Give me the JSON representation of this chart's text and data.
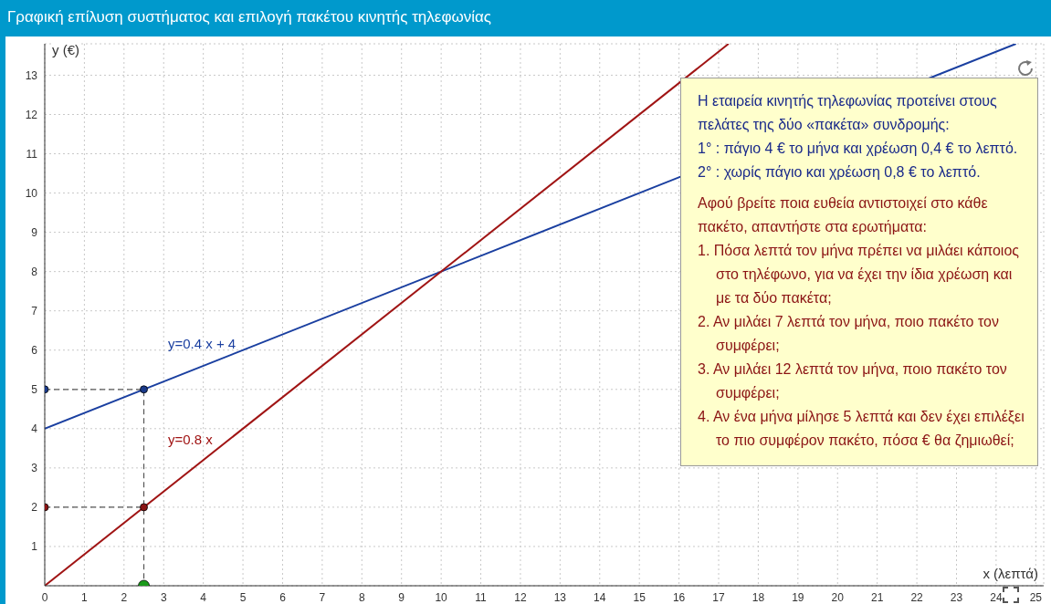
{
  "chart_data": {
    "type": "line",
    "title": "Γραφική επίλυση συστήματος και επιλογή πακέτου κινητής τηλεφωνίας",
    "xlabel": "x (λεπτά)",
    "ylabel": "y (€)",
    "xlim": [
      0,
      25.2
    ],
    "ylim": [
      0,
      13.8
    ],
    "xticks": [
      0,
      1,
      2,
      3,
      4,
      5,
      6,
      7,
      8,
      9,
      10,
      11,
      12,
      13,
      14,
      15,
      16,
      17,
      18,
      19,
      20,
      21,
      22,
      23,
      24,
      25
    ],
    "yticks": [
      1,
      2,
      3,
      4,
      5,
      6,
      7,
      8,
      9,
      10,
      11,
      12,
      13
    ],
    "grid": true,
    "line_style": "solid",
    "series": [
      {
        "color": "#1a3fa0",
        "x": [
          0,
          24.5
        ],
        "values": [
          4,
          13.8
        ],
        "marker": "none"
      },
      {
        "color": "#a01414",
        "x": [
          0,
          17.25
        ],
        "values": [
          0,
          13.8
        ],
        "marker": "none"
      },
      {
        "type": "line",
        "color": "#555555",
        "x": [
          0,
          2.5,
          2.5
        ],
        "values": [
          5,
          5,
          0
        ],
        "line_style": "dashed",
        "marker": "none"
      },
      {
        "type": "line",
        "color": "#555555",
        "x": [
          0,
          2.5
        ],
        "values": [
          2,
          2
        ],
        "line_style": "dashed",
        "marker": "none"
      },
      {
        "type": "scatter",
        "color": "#1a3a8a",
        "x": [
          0,
          2.5
        ],
        "values": [
          5,
          5
        ],
        "marker": "circle"
      },
      {
        "type": "scatter",
        "color": "#8b1414",
        "x": [
          0,
          2.5
        ],
        "values": [
          2,
          2
        ],
        "marker": "circle"
      },
      {
        "type": "scatter",
        "color": "#1a9a1a",
        "x": [
          2.5
        ],
        "values": [
          0
        ],
        "marker": "circle"
      }
    ],
    "annotations": [
      "y=0.4 x + 4",
      "y=0.8 x",
      "Η εταιρεία κινητής τηλεφωνίας προτείνει στους πελάτες της δύο «πακέτα» συνδρομής:",
      "1° : πάγιο 4 € το μήνα και χρέωση 0,4 € το λεπτό.",
      "2° : χωρίς πάγιο και χρέωση 0,8 € το λεπτό.",
      "Αφού βρείτε ποια ευθεία αντιστοιχεί στο κάθε πακέτο, απαντήστε στα ερωτήματα:",
      "1. Πόσα λεπτά τον μήνα πρέπει να μιλάει κάποιος στο τηλέφωνο, για να έχει την ίδια χρέωση και με τα δύο πακέτα;",
      "2. Αν μιλάει 7 λεπτά τον μήνα, ποιο πακέτο τον συμφέρει;",
      "3. Αν μιλάει 12 λεπτά τον μήνα, ποιο πακέτο τον συμφέρει;",
      "4. Αν ένα μήνα μίλησε 5 λεπτά και δεν έχει επιλέξει το πιο συμφέρον πακέτο, πόσα € θα ζημιωθεί;"
    ]
  }
}
